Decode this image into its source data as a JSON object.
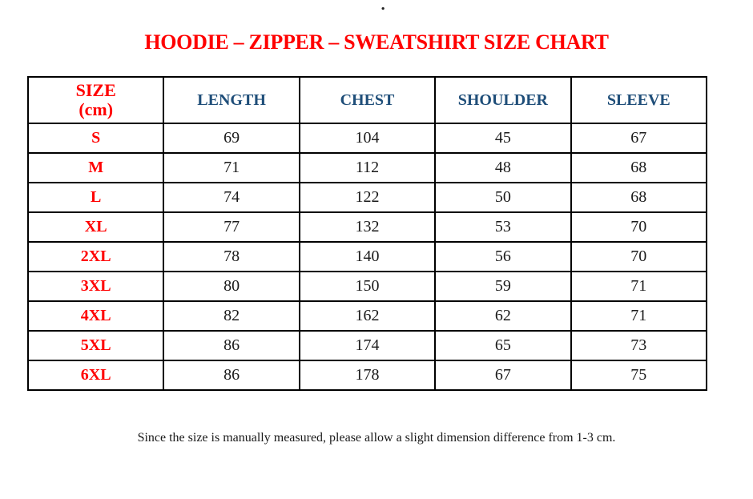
{
  "page": {
    "top_mark": ".",
    "title": "HOODIE – ZIPPER – SWEATSHIRT SIZE CHART",
    "footnote": "Since the size is manually measured, please allow a slight dimension difference from 1-3 cm."
  },
  "colors": {
    "title_red": "#FF0000",
    "header_blue": "#1F4E79",
    "value_black": "#1A1A1A",
    "border_black": "#000000",
    "background_white": "#FFFFFF"
  },
  "chart_data": {
    "type": "table",
    "title": "HOODIE – ZIPPER – SWEATSHIRT SIZE CHART",
    "unit": "cm",
    "columns": [
      "SIZE\n(cm)",
      "LENGTH",
      "CHEST",
      "SHOULDER",
      "SLEEVE"
    ],
    "rows": [
      [
        "S",
        "69",
        "104",
        "45",
        "67"
      ],
      [
        "M",
        "71",
        "112",
        "48",
        "68"
      ],
      [
        "L",
        "74",
        "122",
        "50",
        "68"
      ],
      [
        "XL",
        "77",
        "132",
        "53",
        "70"
      ],
      [
        "2XL",
        "78",
        "140",
        "56",
        "70"
      ],
      [
        "3XL",
        "80",
        "150",
        "59",
        "71"
      ],
      [
        "4XL",
        "82",
        "162",
        "62",
        "71"
      ],
      [
        "5XL",
        "86",
        "174",
        "65",
        "73"
      ],
      [
        "6XL",
        "86",
        "178",
        "67",
        "75"
      ]
    ]
  }
}
